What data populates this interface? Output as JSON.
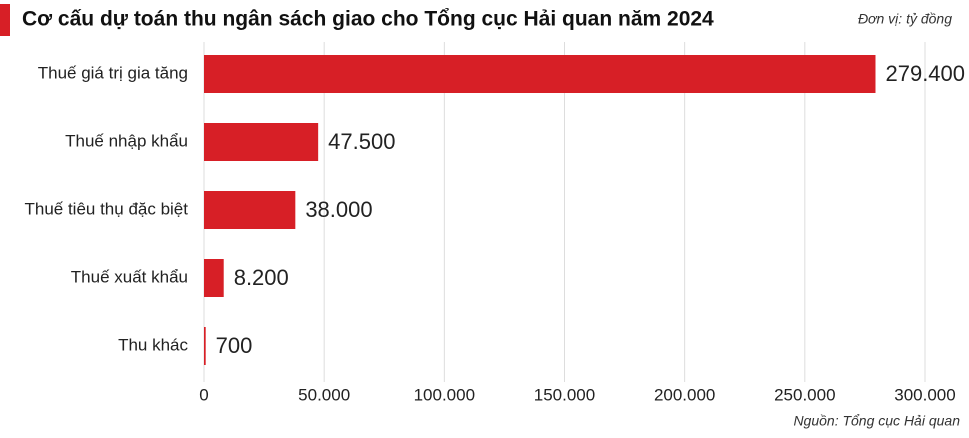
{
  "chart_data": {
    "type": "bar",
    "orientation": "horizontal",
    "title": "Cơ cấu dự toán thu ngân sách giao cho Tổng cục Hải quan năm 2024",
    "unit_note": "Đơn vị: tỷ đồng",
    "source": "Nguồn: Tổng cục Hải quan",
    "categories": [
      "Thuế giá trị gia tăng",
      "Thuế nhập khẩu",
      "Thuế tiêu thụ đặc biệt",
      "Thuế xuất khẩu",
      "Thu khác"
    ],
    "values": [
      279400,
      47500,
      38000,
      8200,
      700
    ],
    "value_labels": [
      "279.400",
      "47.500",
      "38.000",
      "8.200",
      "700"
    ],
    "color": "#d71f26",
    "xlim": [
      0,
      300000
    ],
    "xticks": [
      0,
      {
        "value": 50000,
        "label": "50.000"
      },
      {
        "value": 100000,
        "label": "100.000"
      },
      {
        "value": 150000,
        "label": "150.000"
      },
      {
        "value": 200000,
        "label": "200.000"
      },
      {
        "value": 250000,
        "label": "250.000"
      },
      {
        "value": 300000,
        "label": "300.000"
      }
    ],
    "grid": true
  }
}
